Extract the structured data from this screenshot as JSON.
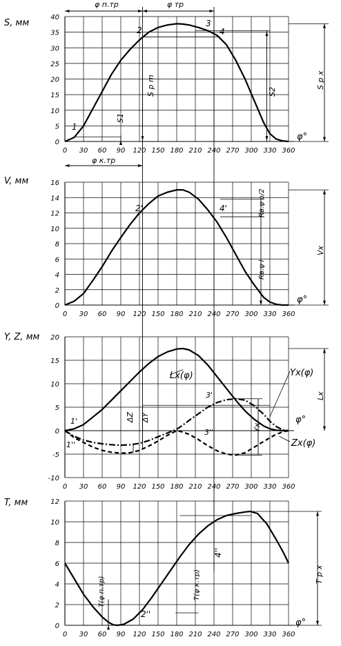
{
  "chart_data": [
    {
      "id": "S",
      "type": "line",
      "ylabel": "S, мм",
      "xlabel": "φ°",
      "xlim": [
        0,
        360
      ],
      "ylim": [
        0,
        40
      ],
      "x_ticks": [
        0,
        30,
        60,
        90,
        120,
        150,
        180,
        210,
        240,
        270,
        300,
        330,
        360
      ],
      "y_ticks": [
        0,
        5,
        10,
        15,
        20,
        25,
        30,
        35,
        40
      ],
      "grid": true,
      "series": [
        {
          "style": "solid",
          "x": [
            0,
            15,
            30,
            45,
            60,
            75,
            90,
            105,
            120,
            135,
            150,
            165,
            180,
            190,
            200,
            215,
            230,
            245,
            260,
            275,
            290,
            305,
            320,
            330,
            340,
            350,
            360
          ],
          "y": [
            0,
            1.3,
            5,
            10.5,
            16,
            21.5,
            26,
            29.5,
            32.5,
            35,
            36.5,
            37.3,
            37.7,
            37.6,
            37.3,
            36.5,
            35.5,
            34,
            31,
            26,
            20,
            13,
            6,
            2.5,
            0.8,
            0.2,
            0
          ]
        }
      ],
      "annotations": {
        "point_labels": [
          "1",
          "2",
          "3",
          "4"
        ],
        "dim_top_left": "φ п.тр",
        "dim_top_right": "φ тр",
        "dim_bottom": "φ к.тр",
        "s1": "S1",
        "sm": "S p m",
        "s2": "S2",
        "sx": "S p x"
      }
    },
    {
      "id": "V",
      "type": "line",
      "ylabel": "V, мм",
      "xlabel": "φ°",
      "xlim": [
        0,
        360
      ],
      "ylim": [
        0,
        16
      ],
      "x_ticks": [
        0,
        30,
        60,
        90,
        120,
        150,
        180,
        210,
        240,
        270,
        300,
        330,
        360
      ],
      "y_ticks": [
        0,
        2,
        4,
        6,
        8,
        10,
        12,
        14,
        16
      ],
      "grid": true,
      "series": [
        {
          "style": "solid",
          "x": [
            0,
            15,
            30,
            45,
            60,
            75,
            90,
            105,
            120,
            135,
            150,
            165,
            180,
            190,
            200,
            215,
            230,
            245,
            260,
            275,
            290,
            305,
            320,
            330,
            340,
            350,
            360
          ],
          "y": [
            0,
            0.5,
            1.5,
            3.2,
            5,
            7,
            8.8,
            10.5,
            12,
            13.2,
            14.2,
            14.7,
            15,
            15,
            14.7,
            13.8,
            12.4,
            10.8,
            8.8,
            6.6,
            4.4,
            2.6,
            1,
            0.4,
            0.1,
            0,
            0
          ]
        }
      ],
      "annotations": {
        "point_labels": [
          "2'",
          "4'"
        ],
        "r_half": "Rв.ψ о/2",
        "r_full": "Rв.ψ I",
        "vx": "Vx"
      }
    },
    {
      "id": "YZ",
      "type": "line",
      "ylabel": "Y, Z, мм",
      "xlabel": "φ°",
      "xlim": [
        0,
        360
      ],
      "ylim": [
        -10,
        20
      ],
      "x_ticks": [
        0,
        30,
        60,
        90,
        120,
        150,
        180,
        210,
        240,
        270,
        300,
        330,
        360
      ],
      "y_ticks": [
        -10,
        -5,
        0,
        5,
        10,
        15,
        20
      ],
      "grid": true,
      "series": [
        {
          "name": "Lx(φ)",
          "style": "solid",
          "x": [
            0,
            15,
            30,
            45,
            60,
            75,
            90,
            105,
            120,
            135,
            150,
            165,
            180,
            190,
            200,
            215,
            230,
            245,
            260,
            275,
            290,
            305,
            320,
            330,
            340,
            350,
            360
          ],
          "y": [
            0,
            0.4,
            1.3,
            2.9,
            4.5,
            6.5,
            8.5,
            10.5,
            12.5,
            14.3,
            15.8,
            16.8,
            17.4,
            17.5,
            17.2,
            16,
            14,
            11.5,
            9,
            6.5,
            4.2,
            2.4,
            1,
            0.4,
            0.1,
            0,
            0
          ]
        },
        {
          "name": "Yx(φ)",
          "style": "dashdot",
          "x": [
            0,
            15,
            30,
            45,
            60,
            75,
            90,
            105,
            120,
            135,
            150,
            165,
            180,
            190,
            200,
            215,
            230,
            245,
            260,
            275,
            290,
            305,
            320,
            330,
            340,
            350,
            360
          ],
          "y": [
            0,
            -1.2,
            -2,
            -2.5,
            -2.8,
            -3,
            -3.1,
            -3,
            -2.7,
            -2.1,
            -1.3,
            -0.5,
            0.3,
            1.2,
            2.2,
            3.6,
            5,
            6,
            6.6,
            6.8,
            6.5,
            5.3,
            3.5,
            2,
            0.9,
            0.2,
            0
          ]
        },
        {
          "name": "Zx(φ)",
          "style": "dashed",
          "x": [
            0,
            15,
            30,
            45,
            60,
            75,
            90,
            105,
            120,
            135,
            150,
            165,
            180,
            190,
            200,
            215,
            230,
            245,
            260,
            275,
            290,
            305,
            320,
            330,
            340,
            350,
            360
          ],
          "y": [
            0,
            -1.5,
            -2.5,
            -3.5,
            -4.2,
            -4.6,
            -4.8,
            -4.7,
            -4.2,
            -3.3,
            -2.2,
            -1,
            0,
            -0.3,
            -0.8,
            -1.9,
            -3.2,
            -4.3,
            -5,
            -5.2,
            -4.7,
            -3.5,
            -2.3,
            -1.5,
            -0.8,
            -0.3,
            0
          ]
        }
      ],
      "annotations": {
        "point_labels": [
          "1'",
          "1''",
          "3'",
          "3''"
        ],
        "dz": "ΔZ",
        "dy": "ΔY",
        "yx": "Yx",
        "lx": "Lx"
      }
    },
    {
      "id": "T",
      "type": "line",
      "ylabel": "T, мм",
      "xlabel": "φ°",
      "xlim": [
        0,
        360
      ],
      "ylim": [
        0,
        12
      ],
      "x_ticks": [
        0,
        30,
        60,
        90,
        120,
        150,
        180,
        210,
        240,
        270,
        300,
        330,
        360
      ],
      "y_ticks": [
        0,
        2,
        4,
        6,
        8,
        10,
        12
      ],
      "grid": true,
      "series": [
        {
          "style": "solid",
          "x": [
            0,
            15,
            30,
            45,
            60,
            70,
            78,
            85,
            95,
            110,
            125,
            140,
            155,
            170,
            185,
            200,
            215,
            230,
            245,
            260,
            275,
            290,
            298,
            310,
            325,
            340,
            352,
            360
          ],
          "y": [
            6,
            4.5,
            3,
            1.8,
            0.8,
            0.3,
            0.05,
            0,
            0.1,
            0.6,
            1.5,
            2.7,
            4,
            5.3,
            6.6,
            7.8,
            8.8,
            9.6,
            10.2,
            10.6,
            10.8,
            10.95,
            11,
            10.8,
            9.8,
            8.3,
            7,
            6
          ]
        }
      ],
      "annotations": {
        "point_labels": [
          "2''",
          "4''"
        ],
        "t_ptr": "T(φ п.тр)",
        "t_ktr": "T(φ к.тр)",
        "tx": "T p x"
      }
    }
  ]
}
